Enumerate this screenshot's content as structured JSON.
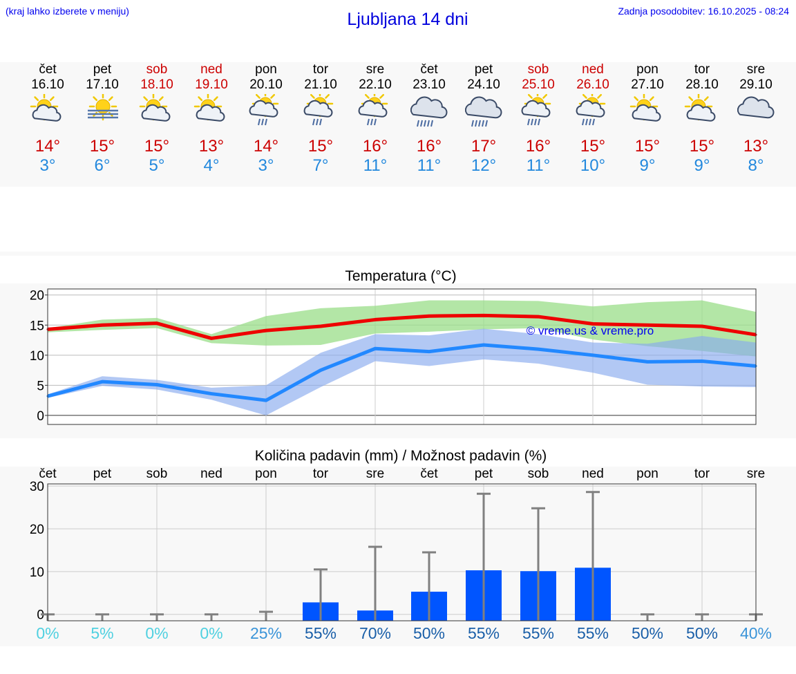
{
  "header": {
    "hint": "(kraj lahko izberete v meniju)",
    "title": "Ljubljana 14 dni",
    "updated": "Zadnja posodobitev: 16.10.2025 - 08:24"
  },
  "colors": {
    "max": "#ee0000",
    "min": "#2288ff",
    "weekend": "#cc0000",
    "precip_bar": "#0055ff"
  },
  "days": [
    {
      "name": "čet",
      "date": "16.10",
      "weekend": false,
      "icon": "sun-cloud-icon",
      "max": "14°",
      "min": "3°"
    },
    {
      "name": "pet",
      "date": "17.10",
      "weekend": false,
      "icon": "sun-fog-icon",
      "max": "15°",
      "min": "6°"
    },
    {
      "name": "sob",
      "date": "18.10",
      "weekend": true,
      "icon": "sun-cloud-icon",
      "max": "15°",
      "min": "5°"
    },
    {
      "name": "ned",
      "date": "19.10",
      "weekend": true,
      "icon": "sun-cloud-icon",
      "max": "13°",
      "min": "4°"
    },
    {
      "name": "pon",
      "date": "20.10",
      "weekend": false,
      "icon": "sun-cloud-rain-icon",
      "max": "14°",
      "min": "3°"
    },
    {
      "name": "tor",
      "date": "21.10",
      "weekend": false,
      "icon": "sun-cloud-rain-icon",
      "max": "15°",
      "min": "7°"
    },
    {
      "name": "sre",
      "date": "22.10",
      "weekend": false,
      "icon": "sun-cloud-rain-icon",
      "max": "16°",
      "min": "11°"
    },
    {
      "name": "čet",
      "date": "23.10",
      "weekend": false,
      "icon": "cloud-heavy-rain-icon",
      "max": "16°",
      "min": "11°"
    },
    {
      "name": "pet",
      "date": "24.10",
      "weekend": false,
      "icon": "cloud-heavy-rain-icon",
      "max": "17°",
      "min": "12°"
    },
    {
      "name": "sob",
      "date": "25.10",
      "weekend": true,
      "icon": "sun-cloud-heavy-rain-icon",
      "max": "16°",
      "min": "11°"
    },
    {
      "name": "ned",
      "date": "26.10",
      "weekend": true,
      "icon": "sun-cloud-heavy-rain-icon",
      "max": "15°",
      "min": "10°"
    },
    {
      "name": "pon",
      "date": "27.10",
      "weekend": false,
      "icon": "sun-cloud-icon",
      "max": "15°",
      "min": "9°"
    },
    {
      "name": "tor",
      "date": "28.10",
      "weekend": false,
      "icon": "sun-cloud-icon",
      "max": "15°",
      "min": "9°"
    },
    {
      "name": "sre",
      "date": "29.10",
      "weekend": false,
      "icon": "cloud-icon",
      "max": "13°",
      "min": "8°"
    }
  ],
  "chart_data": [
    {
      "type": "line",
      "title": "Temperatura (°C)",
      "watermark": "© vreme.us & vreme.pro",
      "x": [
        "16.10",
        "17.10",
        "18.10",
        "19.10",
        "20.10",
        "21.10",
        "22.10",
        "23.10",
        "24.10",
        "25.10",
        "26.10",
        "27.10",
        "28.10",
        "29.10"
      ],
      "ylim": [
        -1.5,
        21
      ],
      "yticks": [
        0,
        5,
        10,
        15,
        20
      ],
      "grid": true,
      "series": [
        {
          "key": "max",
          "color": "#ee0000",
          "values": [
            14.3,
            15.0,
            15.3,
            12.8,
            14.1,
            14.8,
            15.9,
            16.5,
            16.6,
            16.4,
            15.2,
            15.0,
            14.8,
            13.4
          ]
        },
        {
          "key": "min",
          "color": "#2288ff",
          "values": [
            3.2,
            5.6,
            5.1,
            3.6,
            2.5,
            7.5,
            11.1,
            10.6,
            11.7,
            11.0,
            10.0,
            8.9,
            9.0,
            8.2
          ]
        }
      ],
      "bands": [
        {
          "key": "max-range",
          "color": "#99dd88",
          "upper": [
            14.5,
            15.9,
            16.2,
            13.5,
            16.5,
            17.8,
            18.2,
            19.1,
            19.1,
            19.0,
            18.1,
            18.8,
            19.1,
            17.2
          ],
          "lower": [
            13.8,
            14.2,
            14.5,
            12.0,
            11.6,
            11.7,
            13.6,
            13.9,
            14.3,
            14.5,
            12.6,
            11.5,
            10.7,
            9.8
          ]
        },
        {
          "key": "min-range",
          "color": "#88aaee",
          "upper": [
            3.5,
            6.5,
            5.9,
            4.6,
            5.0,
            10.4,
            13.5,
            13.3,
            14.4,
            13.5,
            12.1,
            11.9,
            13.2,
            12.1
          ],
          "lower": [
            2.9,
            4.9,
            4.3,
            2.6,
            0.0,
            4.7,
            9.0,
            8.2,
            9.3,
            8.6,
            7.1,
            5.1,
            4.8,
            4.7
          ]
        }
      ]
    },
    {
      "type": "bar",
      "title": "Količina padavin (mm) / Možnost padavin (%)",
      "categories": [
        "čet",
        "pet",
        "sob",
        "ned",
        "pon",
        "tor",
        "sre",
        "čet",
        "pet",
        "sob",
        "ned",
        "pon",
        "tor",
        "sre"
      ],
      "ylim": [
        -1.5,
        30.5
      ],
      "yticks": [
        0,
        10,
        20,
        30
      ],
      "grid": true,
      "values": [
        0,
        0,
        0,
        0,
        0,
        2.8,
        0.9,
        5.3,
        10.3,
        10.1,
        10.9,
        0,
        0,
        0
      ],
      "error_upper": [
        0,
        0,
        0,
        0,
        0.6,
        10.5,
        15.8,
        14.5,
        28.2,
        24.8,
        28.6,
        0,
        0,
        0
      ],
      "probability": [
        "0%",
        "5%",
        "0%",
        "0%",
        "25%",
        "55%",
        "70%",
        "50%",
        "55%",
        "55%",
        "55%",
        "50%",
        "50%",
        "40%"
      ],
      "probability_values": [
        0,
        5,
        0,
        0,
        25,
        55,
        70,
        50,
        55,
        55,
        55,
        50,
        50,
        40
      ]
    }
  ]
}
